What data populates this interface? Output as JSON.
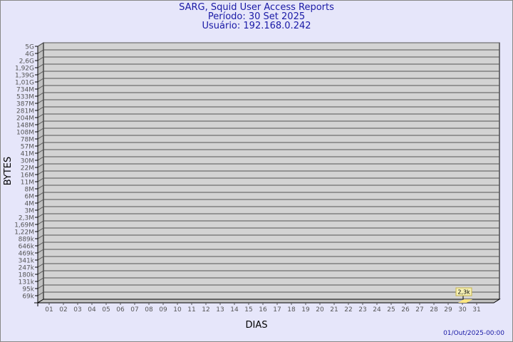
{
  "chart_data": {
    "type": "bar",
    "title": "SARG, Squid User Access Reports",
    "subtitle": [
      "Período: 30 Set 2025",
      "Usuário: 192.168.0.242"
    ],
    "xlabel": "DIAS",
    "ylabel": "BYTES",
    "footer": "01/Out/2025-00:00",
    "yscale": "log",
    "y_tick_labels": [
      "5G",
      "4G",
      "2,6G",
      "1,92G",
      "1,39G",
      "1,01G",
      "734M",
      "533M",
      "387M",
      "281M",
      "204M",
      "148M",
      "108M",
      "78M",
      "57M",
      "41M",
      "30M",
      "22M",
      "16M",
      "11M",
      "8M",
      "6M",
      "4M",
      "3M",
      "2,3M",
      "1,69M",
      "1,22M",
      "889k",
      "646k",
      "469k",
      "341k",
      "247k",
      "180k",
      "131k",
      "95k",
      "69k"
    ],
    "categories": [
      "01",
      "02",
      "03",
      "04",
      "05",
      "06",
      "07",
      "08",
      "09",
      "10",
      "11",
      "12",
      "13",
      "14",
      "15",
      "16",
      "17",
      "18",
      "19",
      "20",
      "21",
      "22",
      "23",
      "24",
      "25",
      "26",
      "27",
      "28",
      "29",
      "30",
      "31"
    ],
    "bars": [
      {
        "category": "30",
        "value": 2300,
        "label": "2,3k"
      }
    ],
    "grid": true,
    "colors": {
      "background": "#e6e6fa",
      "plot": "#d3d3d3",
      "bar": "#ffe680",
      "title": "#1a1aa6",
      "label_box": "#f5f0b4"
    }
  }
}
